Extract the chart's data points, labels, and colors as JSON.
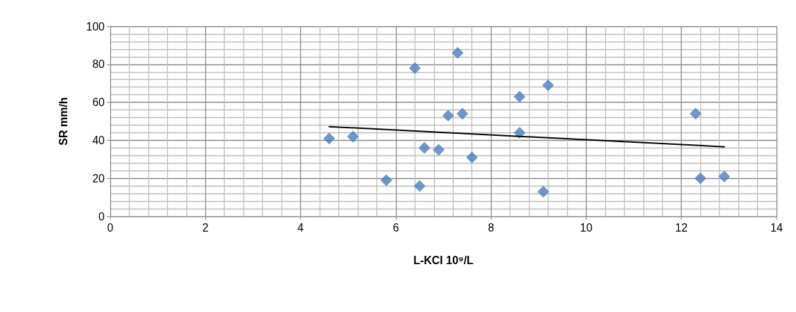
{
  "chart_data": {
    "type": "scatter",
    "xlabel": "L-KCI 10⁹/L",
    "ylabel": "SR mm/h",
    "xlim": [
      0,
      14
    ],
    "xticks": [
      0,
      2,
      4,
      6,
      8,
      10,
      12,
      14
    ],
    "ylim": [
      0,
      100
    ],
    "yticks": [
      0,
      20,
      40,
      60,
      80,
      100
    ],
    "grid": true,
    "marker": "diamond",
    "series": [
      {
        "color": "#4a7ebb",
        "x": [
          4.6,
          5.1,
          5.8,
          6.4,
          6.5,
          6.6,
          6.9,
          7.1,
          7.3,
          7.4,
          7.6,
          8.6,
          8.6,
          9.2,
          9.1,
          12.3,
          12.4,
          12.9
        ],
        "values": [
          41,
          42,
          19,
          78,
          16,
          36,
          35,
          53,
          86,
          54,
          31,
          63,
          44,
          69,
          13,
          54,
          20,
          21
        ]
      },
      {
        "type": "line",
        "color": "#000000",
        "marker": "none",
        "line_style": "solid",
        "x": [
          4.6,
          12.9
        ],
        "values": [
          47.2,
          36.6
        ]
      }
    ]
  }
}
